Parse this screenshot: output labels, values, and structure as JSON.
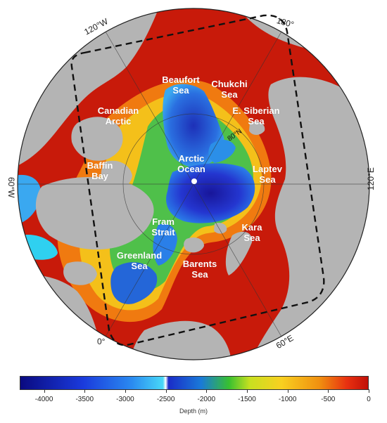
{
  "meridians": {
    "w120": "120°W",
    "e180": "180°",
    "w60": "60°W",
    "e120": "120°E",
    "zero": "0°",
    "e60": "60°E"
  },
  "parallel_label": "80°N",
  "seas": [
    {
      "id": "beaufort",
      "lines": [
        "Beaufort",
        "Sea"
      ]
    },
    {
      "id": "chukchi",
      "lines": [
        "Chukchi",
        "Sea"
      ]
    },
    {
      "id": "canadian",
      "lines": [
        "Canadian",
        "Arctic"
      ]
    },
    {
      "id": "e-siberian",
      "lines": [
        "E. Siberian",
        "Sea"
      ]
    },
    {
      "id": "baffin",
      "lines": [
        "Baffin",
        "Bay"
      ]
    },
    {
      "id": "arctic",
      "lines": [
        "Arctic",
        "Ocean"
      ]
    },
    {
      "id": "laptev",
      "lines": [
        "Laptev",
        "Sea"
      ]
    },
    {
      "id": "fram",
      "lines": [
        "Fram",
        "Strait"
      ]
    },
    {
      "id": "kara",
      "lines": [
        "Kara",
        "Sea"
      ]
    },
    {
      "id": "greenland",
      "lines": [
        "Greenland",
        "Sea"
      ]
    },
    {
      "id": "barents",
      "lines": [
        "Barents",
        "Sea"
      ]
    }
  ],
  "colorbar": {
    "label": "Depth (m)",
    "ticks": [
      "-4000",
      "-3500",
      "-3000",
      "-2500",
      "-2000",
      "-1500",
      "-1000",
      "-500",
      "0"
    ],
    "tick_values": [
      -4000,
      -3500,
      -3000,
      -2500,
      -2000,
      -1500,
      -1000,
      -500,
      0
    ],
    "min": -4300,
    "max": 0
  },
  "colors": {
    "land": "#b4b4b4",
    "shelf": "#c81a0a",
    "abyss": "#1a18b8",
    "frame": "#111111"
  }
}
